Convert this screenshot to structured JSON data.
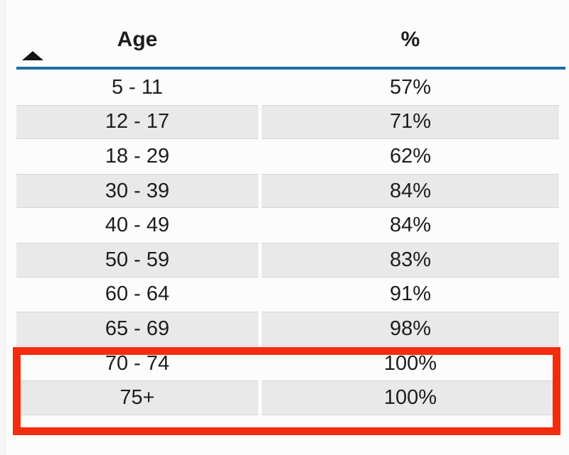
{
  "table": {
    "header": {
      "age_label": "Age",
      "pct_label": "%",
      "sort_icon": "sort-ascending-triangle"
    },
    "rows": [
      {
        "age": "5 - 11",
        "pct": "57%"
      },
      {
        "age": "12 - 17",
        "pct": "71%"
      },
      {
        "age": "18 - 29",
        "pct": "62%"
      },
      {
        "age": "30 - 39",
        "pct": "84%"
      },
      {
        "age": "40 - 49",
        "pct": "84%"
      },
      {
        "age": "50 - 59",
        "pct": "83%"
      },
      {
        "age": "60 - 64",
        "pct": "91%"
      },
      {
        "age": "65 - 69",
        "pct": "98%"
      },
      {
        "age": "70 - 74",
        "pct": "100%"
      },
      {
        "age": "75+",
        "pct": "100%"
      }
    ]
  },
  "annotation": {
    "type": "red-outline-box",
    "highlighted_rows": [
      "70 - 74",
      "75+"
    ]
  },
  "colors": {
    "accent": "#1d6d9e",
    "alt_bg": "#e9e9e9",
    "alt_border": "#d6d6d6",
    "text": "#1d1d1d",
    "highlight": "#f42c0d",
    "page_bg": "#fcfcfc"
  },
  "chart_data": {
    "type": "table",
    "columns": [
      "Age",
      "%"
    ],
    "categories": [
      "5 - 11",
      "12 - 17",
      "18 - 29",
      "30 - 39",
      "40 - 49",
      "50 - 59",
      "60 - 64",
      "65 - 69",
      "70 - 74",
      "75+"
    ],
    "values": [
      57,
      71,
      62,
      84,
      84,
      83,
      91,
      98,
      100,
      100
    ],
    "title": "",
    "xlabel": "Age",
    "ylabel": "%",
    "sort": "ascending",
    "legend": "none",
    "annotations": [
      "red box outlining rows 70 - 74 and 75+ (both 100%)"
    ]
  }
}
